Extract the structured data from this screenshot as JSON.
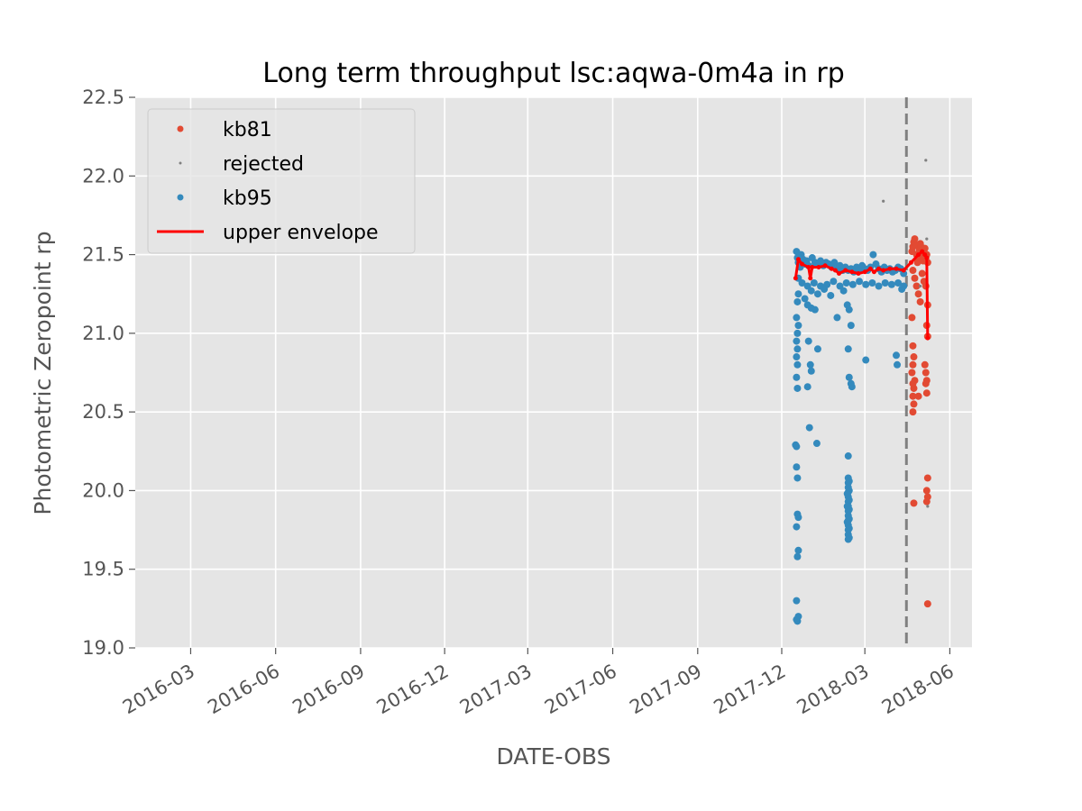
{
  "chart_data": {
    "type": "scatter",
    "title": "Long term throughput  lsc:aqwa-0m4a in rp",
    "xlabel": "DATE-OBS",
    "ylabel": "Photometric Zeropoint rp",
    "xlim": [
      "2016-01-01",
      "2018-06-25"
    ],
    "ylim": [
      19.0,
      22.5
    ],
    "x_ticks": [
      "2016-03",
      "2016-06",
      "2016-09",
      "2016-12",
      "2017-03",
      "2017-06",
      "2017-09",
      "2017-12",
      "2018-03",
      "2018-06"
    ],
    "y_ticks": [
      "19.0",
      "19.5",
      "20.0",
      "20.5",
      "21.0",
      "21.5",
      "22.0",
      "22.5"
    ],
    "grid": true,
    "legend_position": "upper-left",
    "vline": {
      "date": "2018-04-15",
      "style": "dashed",
      "color": "#808080"
    },
    "colors": {
      "kb81": "#e24a33",
      "rejected": "#808080",
      "kb95": "#348abd",
      "envelope": "#ff0000",
      "background": "#e5e5e5"
    },
    "series": [
      {
        "name": "kb81",
        "kind": "points",
        "points": [
          [
            "2018-04-21",
            21.52
          ],
          [
            "2018-04-22",
            21.55
          ],
          [
            "2018-04-23",
            21.58
          ],
          [
            "2018-04-24",
            21.6
          ],
          [
            "2018-04-25",
            21.56
          ],
          [
            "2018-04-26",
            21.5
          ],
          [
            "2018-04-27",
            21.45
          ],
          [
            "2018-04-28",
            21.48
          ],
          [
            "2018-04-29",
            21.53
          ],
          [
            "2018-04-30",
            21.57
          ],
          [
            "2018-05-01",
            21.55
          ],
          [
            "2018-05-02",
            21.5
          ],
          [
            "2018-05-03",
            21.46
          ],
          [
            "2018-05-04",
            21.52
          ],
          [
            "2018-05-05",
            21.54
          ],
          [
            "2018-05-06",
            21.48
          ],
          [
            "2018-05-07",
            21.5
          ],
          [
            "2018-05-08",
            21.45
          ],
          [
            "2018-04-22",
            21.4
          ],
          [
            "2018-04-24",
            21.35
          ],
          [
            "2018-04-26",
            21.3
          ],
          [
            "2018-04-28",
            21.25
          ],
          [
            "2018-04-30",
            21.2
          ],
          [
            "2018-05-02",
            21.38
          ],
          [
            "2018-05-04",
            21.33
          ],
          [
            "2018-05-06",
            21.3
          ],
          [
            "2018-05-08",
            21.18
          ],
          [
            "2018-04-21",
            21.1
          ],
          [
            "2018-05-07",
            21.05
          ],
          [
            "2018-05-08",
            20.98
          ],
          [
            "2018-04-22",
            20.92
          ],
          [
            "2018-04-23",
            20.85
          ],
          [
            "2018-04-22",
            20.8
          ],
          [
            "2018-04-21",
            20.75
          ],
          [
            "2018-04-24",
            20.7
          ],
          [
            "2018-04-22",
            20.68
          ],
          [
            "2018-04-23",
            20.65
          ],
          [
            "2018-04-22",
            20.6
          ],
          [
            "2018-04-23",
            20.55
          ],
          [
            "2018-04-22",
            20.5
          ],
          [
            "2018-05-05",
            20.8
          ],
          [
            "2018-05-06",
            20.75
          ],
          [
            "2018-05-07",
            20.7
          ],
          [
            "2018-05-06",
            20.68
          ],
          [
            "2018-05-07",
            20.62
          ],
          [
            "2018-04-28",
            20.6
          ],
          [
            "2018-05-08",
            20.08
          ],
          [
            "2018-05-07",
            20.0
          ],
          [
            "2018-05-08",
            19.96
          ],
          [
            "2018-05-07",
            19.93
          ],
          [
            "2018-04-23",
            19.92
          ],
          [
            "2018-05-08",
            19.28
          ]
        ]
      },
      {
        "name": "rejected",
        "kind": "points",
        "points": [
          [
            "2018-03-21",
            21.84
          ],
          [
            "2018-05-06",
            22.1
          ],
          [
            "2018-05-07",
            21.6
          ],
          [
            "2018-05-08",
            19.9
          ],
          [
            "2018-04-30",
            21.3
          ]
        ]
      },
      {
        "name": "kb95",
        "kind": "points",
        "points": [
          [
            "2017-12-17",
            21.52
          ],
          [
            "2017-12-18",
            21.48
          ],
          [
            "2017-12-19",
            21.45
          ],
          [
            "2017-12-20",
            21.5
          ],
          [
            "2017-12-21",
            21.42
          ],
          [
            "2017-12-22",
            21.5
          ],
          [
            "2017-12-24",
            21.47
          ],
          [
            "2017-12-26",
            21.44
          ],
          [
            "2017-12-28",
            21.46
          ],
          [
            "2017-12-30",
            21.43
          ],
          [
            "2018-01-03",
            21.48
          ],
          [
            "2018-01-06",
            21.45
          ],
          [
            "2018-01-09",
            21.44
          ],
          [
            "2018-01-12",
            21.46
          ],
          [
            "2018-01-15",
            21.43
          ],
          [
            "2018-01-18",
            21.45
          ],
          [
            "2018-01-21",
            21.44
          ],
          [
            "2018-01-24",
            21.42
          ],
          [
            "2018-01-27",
            21.45
          ],
          [
            "2018-01-30",
            21.41
          ],
          [
            "2018-02-02",
            21.43
          ],
          [
            "2018-02-05",
            21.4
          ],
          [
            "2018-02-08",
            21.42
          ],
          [
            "2018-02-11",
            21.4
          ],
          [
            "2018-02-14",
            21.41
          ],
          [
            "2018-02-17",
            21.39
          ],
          [
            "2018-02-20",
            21.42
          ],
          [
            "2018-02-23",
            21.4
          ],
          [
            "2018-02-26",
            21.43
          ],
          [
            "2018-03-01",
            21.41
          ],
          [
            "2018-03-04",
            21.4
          ],
          [
            "2018-03-07",
            21.42
          ],
          [
            "2018-03-10",
            21.5
          ],
          [
            "2018-03-13",
            21.44
          ],
          [
            "2018-03-16",
            21.41
          ],
          [
            "2018-03-19",
            21.39
          ],
          [
            "2018-03-22",
            21.42
          ],
          [
            "2018-03-25",
            21.4
          ],
          [
            "2018-03-28",
            21.41
          ],
          [
            "2018-03-31",
            21.39
          ],
          [
            "2018-04-03",
            21.4
          ],
          [
            "2018-04-06",
            21.42
          ],
          [
            "2018-04-09",
            21.41
          ],
          [
            "2018-04-12",
            21.38
          ],
          [
            "2017-12-19",
            21.35
          ],
          [
            "2017-12-23",
            21.32
          ],
          [
            "2017-12-29",
            21.3
          ],
          [
            "2018-01-05",
            21.32
          ],
          [
            "2018-01-12",
            21.3
          ],
          [
            "2018-01-19",
            21.31
          ],
          [
            "2018-01-26",
            21.33
          ],
          [
            "2018-02-02",
            21.3
          ],
          [
            "2018-02-09",
            21.32
          ],
          [
            "2018-02-16",
            21.31
          ],
          [
            "2018-02-23",
            21.33
          ],
          [
            "2018-03-02",
            21.31
          ],
          [
            "2018-03-09",
            21.32
          ],
          [
            "2018-03-16",
            21.3
          ],
          [
            "2018-03-23",
            21.32
          ],
          [
            "2018-03-30",
            21.31
          ],
          [
            "2018-04-06",
            21.32
          ],
          [
            "2018-04-12",
            21.3
          ],
          [
            "2017-12-19",
            21.25
          ],
          [
            "2017-12-26",
            21.22
          ],
          [
            "2018-01-02",
            21.27
          ],
          [
            "2018-01-09",
            21.25
          ],
          [
            "2018-01-16",
            21.28
          ],
          [
            "2018-01-23",
            21.24
          ],
          [
            "2018-02-06",
            21.27
          ],
          [
            "2018-04-10",
            21.28
          ],
          [
            "2017-12-18",
            21.2
          ],
          [
            "2017-12-17",
            21.1
          ],
          [
            "2017-12-18",
            21.0
          ],
          [
            "2017-12-17",
            20.95
          ],
          [
            "2017-12-18",
            20.9
          ],
          [
            "2017-12-17",
            20.85
          ],
          [
            "2017-12-18",
            20.8
          ],
          [
            "2017-12-17",
            20.72
          ],
          [
            "2017-12-18",
            20.65
          ],
          [
            "2017-12-19",
            21.05
          ],
          [
            "2017-12-29",
            21.18
          ],
          [
            "2018-01-02",
            21.16
          ],
          [
            "2018-01-06",
            21.15
          ],
          [
            "2017-12-30",
            20.95
          ],
          [
            "2018-01-09",
            20.9
          ],
          [
            "2018-01-01",
            20.8
          ],
          [
            "2018-01-02",
            20.76
          ],
          [
            "2017-12-29",
            20.66
          ],
          [
            "2017-12-31",
            20.4
          ],
          [
            "2018-01-08",
            20.3
          ],
          [
            "2018-01-30",
            21.1
          ],
          [
            "2018-02-10",
            21.18
          ],
          [
            "2018-02-12",
            21.15
          ],
          [
            "2018-02-14",
            21.05
          ],
          [
            "2018-02-11",
            20.9
          ],
          [
            "2018-02-14",
            20.68
          ],
          [
            "2018-02-15",
            20.66
          ],
          [
            "2018-02-12",
            20.72
          ],
          [
            "2018-03-02",
            20.83
          ],
          [
            "2018-04-04",
            20.86
          ],
          [
            "2018-04-05",
            20.8
          ],
          [
            "2017-12-16",
            20.29
          ],
          [
            "2017-12-17",
            20.28
          ],
          [
            "2017-12-17",
            20.15
          ],
          [
            "2017-12-18",
            20.08
          ],
          [
            "2017-12-18",
            19.85
          ],
          [
            "2017-12-19",
            19.83
          ],
          [
            "2017-12-17",
            19.77
          ],
          [
            "2017-12-19",
            19.62
          ],
          [
            "2017-12-18",
            19.58
          ],
          [
            "2017-12-17",
            19.3
          ],
          [
            "2017-12-17",
            19.18
          ],
          [
            "2017-12-18",
            19.17
          ],
          [
            "2017-12-19",
            19.2
          ],
          [
            "2018-02-11",
            20.22
          ],
          [
            "2018-02-11",
            20.08
          ],
          [
            "2018-02-11",
            20.05
          ],
          [
            "2018-02-11",
            20.02
          ],
          [
            "2018-02-11",
            19.99
          ],
          [
            "2018-02-11",
            19.96
          ],
          [
            "2018-02-11",
            19.93
          ],
          [
            "2018-02-11",
            19.9
          ],
          [
            "2018-02-11",
            19.87
          ],
          [
            "2018-02-11",
            19.84
          ],
          [
            "2018-02-11",
            19.81
          ],
          [
            "2018-02-11",
            19.78
          ],
          [
            "2018-02-11",
            19.75
          ],
          [
            "2018-02-11",
            19.72
          ],
          [
            "2018-02-11",
            19.69
          ],
          [
            "2018-02-12",
            20.06
          ],
          [
            "2018-02-12",
            20.0
          ],
          [
            "2018-02-12",
            19.94
          ],
          [
            "2018-02-12",
            19.88
          ],
          [
            "2018-02-12",
            19.82
          ],
          [
            "2018-02-12",
            19.76
          ],
          [
            "2018-02-12",
            19.7
          ],
          [
            "2018-02-10",
            19.98
          ],
          [
            "2018-02-10",
            19.9
          ],
          [
            "2018-02-10",
            19.8
          ]
        ]
      },
      {
        "name": "upper envelope",
        "kind": "line",
        "points": [
          [
            "2017-12-16",
            21.35
          ],
          [
            "2017-12-19",
            21.47
          ],
          [
            "2017-12-23",
            21.44
          ],
          [
            "2017-12-30",
            21.42
          ],
          [
            "2018-01-01",
            21.35
          ],
          [
            "2018-01-03",
            21.42
          ],
          [
            "2018-01-10",
            21.42
          ],
          [
            "2018-01-17",
            21.43
          ],
          [
            "2018-01-24",
            21.41
          ],
          [
            "2018-01-28",
            21.4
          ],
          [
            "2018-02-01",
            21.38
          ],
          [
            "2018-02-08",
            21.4
          ],
          [
            "2018-02-15",
            21.39
          ],
          [
            "2018-02-22",
            21.38
          ],
          [
            "2018-03-01",
            21.39
          ],
          [
            "2018-03-07",
            21.41
          ],
          [
            "2018-03-11",
            21.39
          ],
          [
            "2018-03-16",
            21.41
          ],
          [
            "2018-03-21",
            21.4
          ],
          [
            "2018-03-28",
            21.41
          ],
          [
            "2018-04-04",
            21.41
          ],
          [
            "2018-04-12",
            21.4
          ],
          [
            "2018-04-20",
            21.45
          ],
          [
            "2018-04-28",
            21.5
          ],
          [
            "2018-05-02",
            21.52
          ],
          [
            "2018-05-05",
            21.5
          ],
          [
            "2018-05-07",
            21.48
          ],
          [
            "2018-05-08",
            20.97
          ]
        ]
      }
    ]
  }
}
